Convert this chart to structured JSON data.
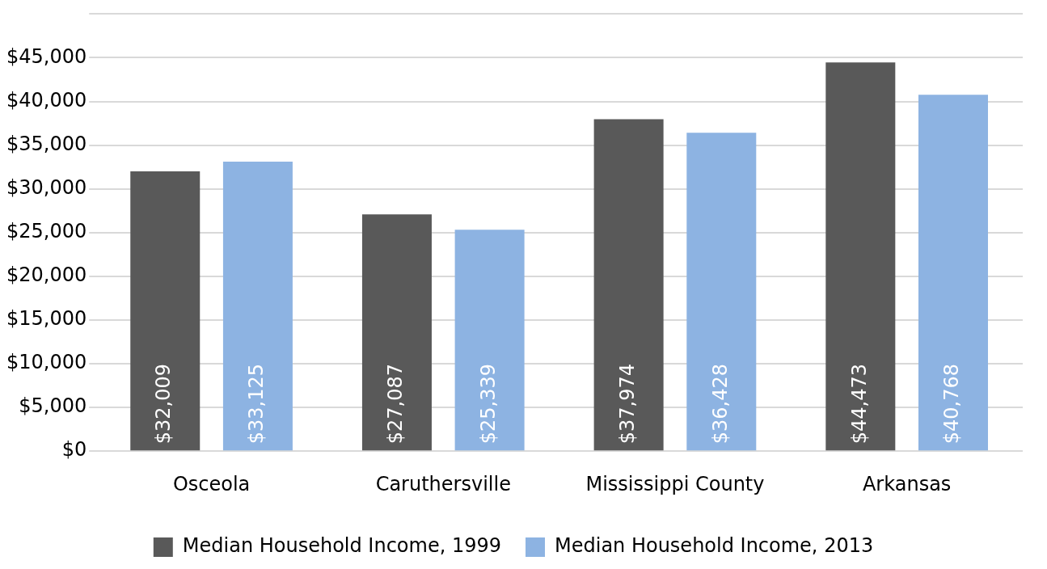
{
  "chart_data": {
    "type": "bar",
    "categories": [
      "Osceola",
      "Caruthersville",
      "Mississippi County",
      "Arkansas"
    ],
    "series": [
      {
        "name": "Median Household Income, 1999",
        "color": "#595959",
        "values": [
          32009,
          27087,
          37974,
          44473
        ],
        "value_labels": [
          "$32,009",
          "$27,087",
          "$37,974",
          "$44,473"
        ]
      },
      {
        "name": "Median Household Income, 2013",
        "color": "#8db3e2",
        "values": [
          33125,
          25339,
          36428,
          40768
        ],
        "value_labels": [
          "$33,125",
          "$25,339",
          "$36,428",
          "$40,768"
        ]
      }
    ],
    "ylim": [
      0,
      50000
    ],
    "yticks": [
      {
        "value": 0,
        "label": "$0"
      },
      {
        "value": 5000,
        "label": "$5,000"
      },
      {
        "value": 10000,
        "label": "$10,000"
      },
      {
        "value": 15000,
        "label": "$15,000"
      },
      {
        "value": 20000,
        "label": "$20,000"
      },
      {
        "value": 25000,
        "label": "$25,000"
      },
      {
        "value": 30000,
        "label": "$30,000"
      },
      {
        "value": 35000,
        "label": "$35,000"
      },
      {
        "value": 40000,
        "label": "$40,000"
      },
      {
        "value": 45000,
        "label": "$45,000"
      },
      {
        "value": 50000,
        "label": null
      }
    ],
    "grid": "y",
    "legend": "bottom"
  }
}
